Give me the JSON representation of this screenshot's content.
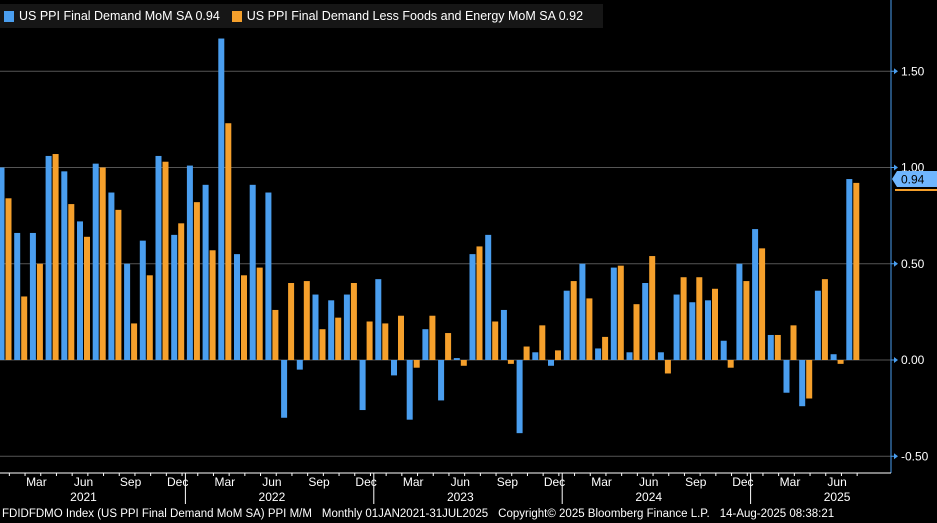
{
  "legend": {
    "series1_label": "US PPI Final Demand MoM SA 0.94",
    "series2_label": "US PPI Final Demand Less Foods and Energy MoM SA 0.92"
  },
  "colors": {
    "series1": "#4a9eef",
    "series2": "#f5a02c",
    "grid": "#555555",
    "axis": "#4a9eef",
    "background": "#000000"
  },
  "chart_data": {
    "type": "bar",
    "title": "",
    "xlabel": "",
    "ylabel": "",
    "ylim": [
      -0.5,
      1.8
    ],
    "yticks": [
      -0.5,
      0.0,
      0.5,
      1.0,
      1.5
    ],
    "ytick_labels": [
      "-0.50",
      "0.00",
      "0.50",
      "1.00",
      "1.50"
    ],
    "last_value_labels": [
      "0.94"
    ],
    "month_labels": [
      {
        "index": 2,
        "label": "Mar"
      },
      {
        "index": 5,
        "label": "Jun"
      },
      {
        "index": 8,
        "label": "Sep"
      },
      {
        "index": 11,
        "label": "Dec"
      },
      {
        "index": 14,
        "label": "Mar"
      },
      {
        "index": 17,
        "label": "Jun"
      },
      {
        "index": 20,
        "label": "Sep"
      },
      {
        "index": 23,
        "label": "Dec"
      },
      {
        "index": 26,
        "label": "Mar"
      },
      {
        "index": 29,
        "label": "Jun"
      },
      {
        "index": 32,
        "label": "Sep"
      },
      {
        "index": 35,
        "label": "Dec"
      },
      {
        "index": 38,
        "label": "Mar"
      },
      {
        "index": 41,
        "label": "Jun"
      },
      {
        "index": 44,
        "label": "Sep"
      },
      {
        "index": 47,
        "label": "Dec"
      },
      {
        "index": 50,
        "label": "Mar"
      },
      {
        "index": 53,
        "label": "Jun"
      }
    ],
    "year_labels": [
      {
        "index": 5,
        "label": "2021"
      },
      {
        "index": 17,
        "label": "2022"
      },
      {
        "index": 29,
        "label": "2023"
      },
      {
        "index": 41,
        "label": "2024"
      },
      {
        "index": 53,
        "label": "2025"
      }
    ],
    "year_separators": [
      12,
      24,
      36,
      48
    ],
    "categories": [
      "Jan 2021",
      "Feb 2021",
      "Mar 2021",
      "Apr 2021",
      "May 2021",
      "Jun 2021",
      "Jul 2021",
      "Aug 2021",
      "Sep 2021",
      "Oct 2021",
      "Nov 2021",
      "Dec 2021",
      "Jan 2022",
      "Feb 2022",
      "Mar 2022",
      "Apr 2022",
      "May 2022",
      "Jun 2022",
      "Jul 2022",
      "Aug 2022",
      "Sep 2022",
      "Oct 2022",
      "Nov 2022",
      "Dec 2022",
      "Jan 2023",
      "Feb 2023",
      "Mar 2023",
      "Apr 2023",
      "May 2023",
      "Jun 2023",
      "Jul 2023",
      "Aug 2023",
      "Sep 2023",
      "Oct 2023",
      "Nov 2023",
      "Dec 2023",
      "Jan 2024",
      "Feb 2024",
      "Mar 2024",
      "Apr 2024",
      "May 2024",
      "Jun 2024",
      "Jul 2024",
      "Aug 2024",
      "Sep 2024",
      "Oct 2024",
      "Nov 2024",
      "Dec 2024",
      "Jan 2025",
      "Feb 2025",
      "Mar 2025",
      "Apr 2025",
      "May 2025",
      "Jun 2025",
      "Jul 2025"
    ],
    "series": [
      {
        "name": "US PPI Final Demand MoM SA",
        "values": [
          1.0,
          0.66,
          0.66,
          1.06,
          0.98,
          0.72,
          1.02,
          0.87,
          0.5,
          0.62,
          1.06,
          0.65,
          1.01,
          0.91,
          1.67,
          0.55,
          0.91,
          0.87,
          -0.3,
          -0.05,
          0.34,
          0.31,
          0.34,
          -0.26,
          0.42,
          -0.08,
          -0.31,
          0.16,
          -0.21,
          0.01,
          0.55,
          0.65,
          0.26,
          -0.38,
          0.04,
          -0.03,
          0.36,
          0.5,
          0.06,
          0.48,
          0.04,
          0.4,
          0.04,
          0.34,
          0.3,
          0.31,
          0.1,
          0.5,
          0.68,
          0.13,
          -0.17,
          -0.24,
          0.36,
          0.03,
          0.94
        ]
      },
      {
        "name": "US PPI Final Demand Less Foods and Energy MoM SA",
        "values": [
          0.84,
          0.33,
          0.5,
          1.07,
          0.81,
          0.64,
          1.0,
          0.78,
          0.19,
          0.44,
          1.03,
          0.71,
          0.82,
          0.57,
          1.23,
          0.44,
          0.48,
          0.26,
          0.4,
          0.41,
          0.16,
          0.22,
          0.4,
          0.2,
          0.19,
          0.23,
          -0.04,
          0.23,
          0.14,
          -0.03,
          0.59,
          0.2,
          -0.02,
          0.07,
          0.18,
          0.05,
          0.41,
          0.32,
          0.12,
          0.49,
          0.29,
          0.54,
          -0.07,
          0.43,
          0.43,
          0.37,
          -0.04,
          0.41,
          0.58,
          0.13,
          0.18,
          -0.2,
          0.42,
          -0.02,
          0.92
        ]
      }
    ]
  },
  "footer": {
    "index_info": "FDIDFDMO Index (US PPI Final Demand MoM SA) PPI M/M",
    "range": "Monthly 01JAN2021-31JUL2025",
    "copyright": "Copyright© 2025 Bloomberg Finance L.P.",
    "timestamp": "14-Aug-2025 08:38:21"
  }
}
